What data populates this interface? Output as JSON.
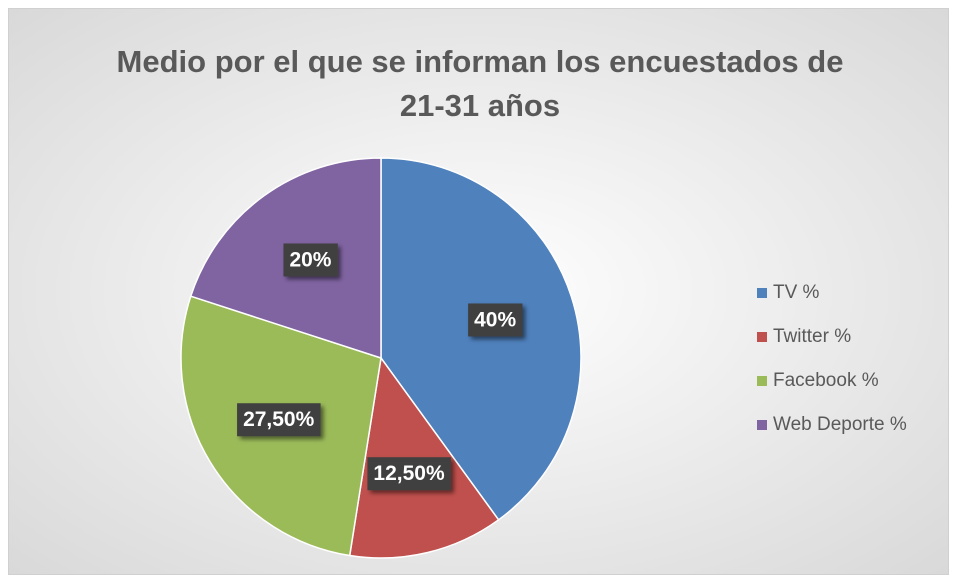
{
  "chart_data": {
    "type": "pie",
    "title": "Medio por el que se informan los encuestados de 21-31 años",
    "categories": [
      "TV %",
      "Twitter %",
      "Facebook %",
      "Web Deporte %"
    ],
    "values": [
      40,
      12.5,
      27.5,
      20
    ],
    "value_labels": [
      "40%",
      "12,50%",
      "27,50%",
      "20%"
    ],
    "colors": [
      "#4f81bd",
      "#c0504d",
      "#9bbb59",
      "#8064a2"
    ],
    "legend": "right"
  }
}
